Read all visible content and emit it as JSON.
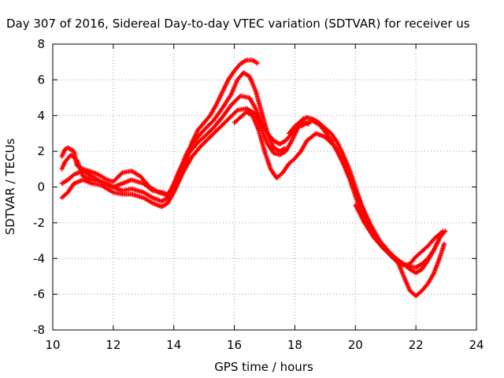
{
  "chart_data": {
    "type": "scatter",
    "title": "Day 307 of 2016, Sidereal Day-to-day VTEC variation (SDTVAR) for receiver us",
    "xlabel": "GPS time / hours",
    "ylabel": "SDTVAR / TECUs",
    "xlim": [
      10,
      24
    ],
    "ylim": [
      -8,
      8
    ],
    "x_ticks": [
      10,
      12,
      14,
      16,
      18,
      20,
      22,
      24
    ],
    "y_ticks": [
      -8,
      -6,
      -4,
      -2,
      0,
      2,
      4,
      6,
      8
    ],
    "x_tick_labels": [
      "10",
      "12",
      "14",
      "16",
      "18",
      "20",
      "22",
      "24"
    ],
    "y_tick_labels": [
      "-8",
      "-6",
      "-4",
      "-2",
      "0",
      "2",
      "4",
      "6",
      "8"
    ],
    "grid": true,
    "marker": "+",
    "color": "#ff0000",
    "series": [
      {
        "x": [
          10.3,
          10.4,
          10.5,
          10.6,
          10.7,
          10.8,
          11.0,
          11.2,
          11.5,
          11.8,
          12.0,
          12.3,
          12.6,
          12.9,
          13.2,
          13.5,
          13.7,
          13.8,
          14.0,
          14.2,
          14.4,
          14.6,
          14.8,
          15.0,
          15.2,
          15.4,
          15.6,
          15.8,
          16.0,
          16.2,
          16.4,
          16.6,
          16.8
        ],
        "y": [
          1.7,
          2.1,
          2.2,
          2.1,
          2.0,
          1.2,
          1.0,
          0.9,
          0.7,
          0.4,
          0.3,
          0.8,
          0.9,
          0.6,
          0.0,
          -0.3,
          -0.4,
          -0.5,
          -0.2,
          0.5,
          1.5,
          2.5,
          3.2,
          3.6,
          4.0,
          4.6,
          5.3,
          6.0,
          6.5,
          6.9,
          7.1,
          7.1,
          6.9
        ]
      },
      {
        "x": [
          10.3,
          10.4,
          10.6,
          10.8,
          11.0,
          11.3,
          11.6,
          12.0,
          12.3,
          12.6,
          13.0,
          13.3,
          13.6,
          13.8,
          14.0,
          14.2,
          14.4,
          14.6,
          14.8,
          15.0,
          15.3,
          15.6,
          15.9,
          16.1,
          16.3,
          16.5,
          16.7,
          16.9,
          17.1,
          17.3,
          17.5,
          17.7
        ],
        "y": [
          1.0,
          1.4,
          1.8,
          1.5,
          0.6,
          0.4,
          0.3,
          0.0,
          0.2,
          0.4,
          0.2,
          -0.2,
          -0.3,
          -0.4,
          0.1,
          0.9,
          1.8,
          2.4,
          2.8,
          3.2,
          3.7,
          4.4,
          5.2,
          6.0,
          6.4,
          6.2,
          5.4,
          4.2,
          3.0,
          2.2,
          2.0,
          2.2
        ]
      },
      {
        "x": [
          10.3,
          10.5,
          10.7,
          11.0,
          11.3,
          11.6,
          12.0,
          12.3,
          12.6,
          13.0,
          13.3,
          13.6,
          13.8,
          14.0,
          14.2,
          14.5,
          14.8,
          15.0,
          15.3,
          15.6,
          15.9,
          16.2,
          16.5,
          16.7,
          16.9,
          17.1,
          17.3,
          17.5,
          17.7,
          17.9,
          18.1,
          18.3,
          18.5
        ],
        "y": [
          0.2,
          0.4,
          0.7,
          0.9,
          0.6,
          0.3,
          0.0,
          -0.2,
          -0.1,
          -0.3,
          -0.6,
          -0.8,
          -0.6,
          0.2,
          1.0,
          1.9,
          2.5,
          2.8,
          3.3,
          3.9,
          4.6,
          5.1,
          5.0,
          4.4,
          3.6,
          3.0,
          2.6,
          2.4,
          2.6,
          3.0,
          3.4,
          3.6,
          3.5
        ]
      },
      {
        "x": [
          10.3,
          10.5,
          10.7,
          11.0,
          11.3,
          11.6,
          12.0,
          12.3,
          12.6,
          13.0,
          13.3,
          13.6,
          13.8,
          14.0,
          14.3,
          14.6,
          14.9,
          15.2,
          15.5,
          15.8,
          16.1,
          16.4,
          16.7,
          16.9,
          17.1,
          17.3,
          17.5,
          17.7,
          17.9,
          18.1,
          18.3
        ],
        "y": [
          -0.6,
          -0.3,
          0.2,
          0.4,
          0.2,
          0.1,
          -0.3,
          -0.4,
          -0.4,
          -0.6,
          -0.9,
          -1.1,
          -0.9,
          -0.3,
          0.8,
          1.7,
          2.3,
          2.8,
          3.3,
          3.8,
          4.3,
          4.4,
          4.1,
          3.2,
          2.4,
          1.9,
          1.8,
          2.0,
          2.6,
          3.3,
          3.9
        ]
      },
      {
        "x": [
          16.0,
          16.2,
          16.4,
          16.6,
          16.8,
          17.0,
          17.2,
          17.4,
          17.6,
          17.8,
          18.0,
          18.2,
          18.4,
          18.7,
          19.0,
          19.3,
          19.6,
          19.9,
          20.2,
          20.5,
          20.8,
          21.1,
          21.4,
          21.7,
          22.0,
          22.2,
          22.4,
          22.6,
          22.8,
          22.9
        ],
        "y": [
          3.6,
          3.9,
          4.2,
          4.0,
          3.2,
          2.0,
          1.0,
          0.5,
          0.8,
          1.3,
          1.6,
          2.0,
          2.6,
          3.0,
          2.8,
          2.3,
          1.4,
          0.2,
          -1.0,
          -2.1,
          -3.0,
          -3.6,
          -4.1,
          -4.4,
          -4.5,
          -4.3,
          -4.0,
          -3.5,
          -2.8,
          -2.4
        ]
      },
      {
        "x": [
          17.8,
          18.0,
          18.2,
          18.4,
          18.6,
          18.8,
          19.0,
          19.2,
          19.4,
          19.6,
          19.8,
          20.0,
          20.3,
          20.6,
          20.9,
          21.2,
          21.5,
          21.8,
          22.0,
          22.2,
          22.4,
          22.6,
          22.8,
          23.0
        ],
        "y": [
          3.0,
          3.4,
          3.7,
          3.9,
          3.8,
          3.6,
          3.3,
          3.0,
          2.5,
          1.8,
          1.0,
          0.0,
          -1.5,
          -2.6,
          -3.3,
          -3.8,
          -4.2,
          -4.6,
          -4.8,
          -4.6,
          -4.1,
          -3.5,
          -2.8,
          -2.4
        ]
      },
      {
        "x": [
          18.2,
          18.4,
          18.6,
          18.8,
          19.0,
          19.2,
          19.4,
          19.6,
          19.8,
          20.0,
          20.2,
          20.5,
          20.8,
          21.1,
          21.4,
          21.6,
          21.8,
          22.0,
          22.2,
          22.4,
          22.6,
          22.8,
          22.95
        ],
        "y": [
          3.4,
          3.6,
          3.7,
          3.5,
          3.1,
          2.6,
          2.0,
          1.3,
          0.5,
          -0.5,
          -1.4,
          -2.3,
          -3.0,
          -3.6,
          -4.2,
          -5.0,
          -5.8,
          -6.1,
          -5.8,
          -5.4,
          -4.8,
          -3.9,
          -3.1
        ]
      },
      {
        "x": [
          20.0,
          20.3,
          20.6,
          20.9,
          21.2,
          21.5,
          21.8,
          22.0,
          22.2,
          22.4,
          22.6,
          22.8,
          22.9
        ],
        "y": [
          -1.0,
          -2.0,
          -2.8,
          -3.4,
          -3.9,
          -4.4,
          -4.3,
          -3.9,
          -3.6,
          -3.3,
          -2.9,
          -2.6,
          -2.5
        ]
      }
    ]
  }
}
